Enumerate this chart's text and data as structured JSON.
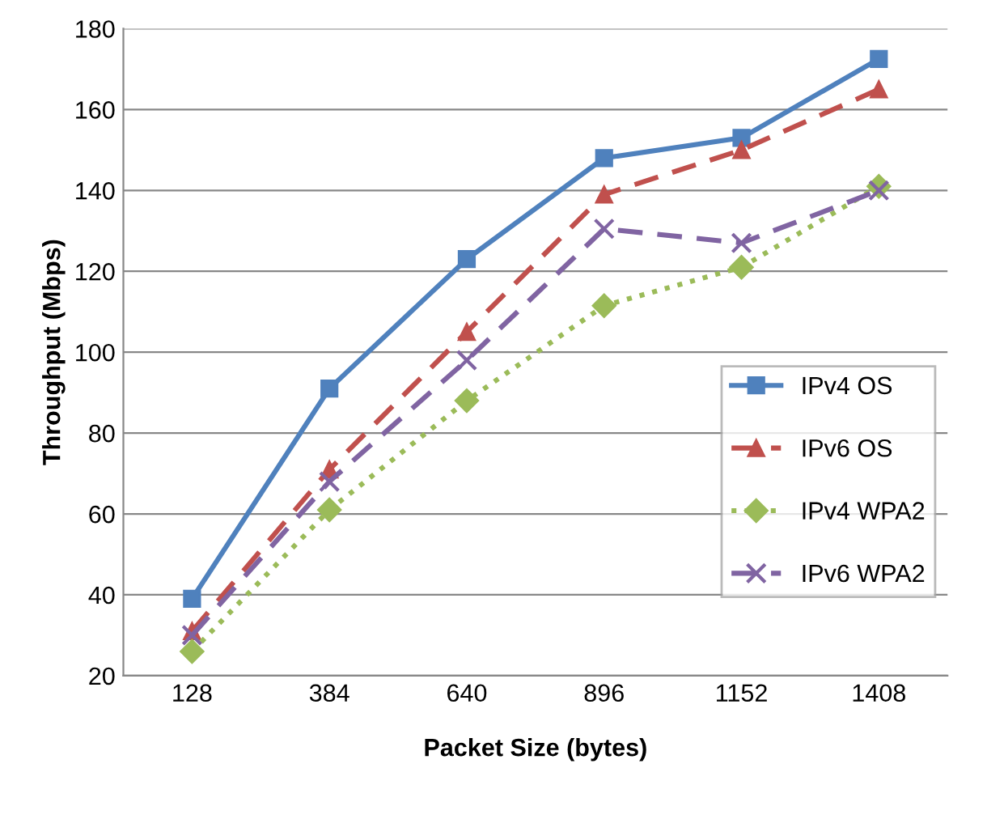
{
  "chart_data": {
    "type": "line",
    "xlabel": "Packet Size (bytes)",
    "ylabel": "Throughput (Mbps)",
    "categories": [
      "128",
      "384",
      "640",
      "896",
      "1152",
      "1408"
    ],
    "series": [
      {
        "name": "IPv4 OS",
        "color": "#4f81bd",
        "marker": "square",
        "line_style": "solid",
        "values": [
          39,
          91,
          123,
          148,
          153,
          172.5
        ]
      },
      {
        "name": "IPv6 OS",
        "color": "#c0504d",
        "marker": "triangle",
        "line_style": "dashed",
        "values": [
          31,
          71,
          105,
          139,
          150,
          165
        ]
      },
      {
        "name": "IPv4 WPA2",
        "color": "#9bbb59",
        "marker": "diamond",
        "line_style": "dotted",
        "values": [
          26,
          61,
          88,
          111.5,
          121,
          141
        ]
      },
      {
        "name": "IPv6 WPA2",
        "color": "#8064a2",
        "marker": "cross",
        "line_style": "dashed",
        "values": [
          30,
          68,
          98,
          130.5,
          127,
          140
        ]
      }
    ],
    "ylim": [
      20,
      180
    ],
    "yticks": [
      20,
      40,
      60,
      80,
      100,
      120,
      140,
      160,
      180
    ],
    "grid": "y",
    "legend": "right"
  }
}
